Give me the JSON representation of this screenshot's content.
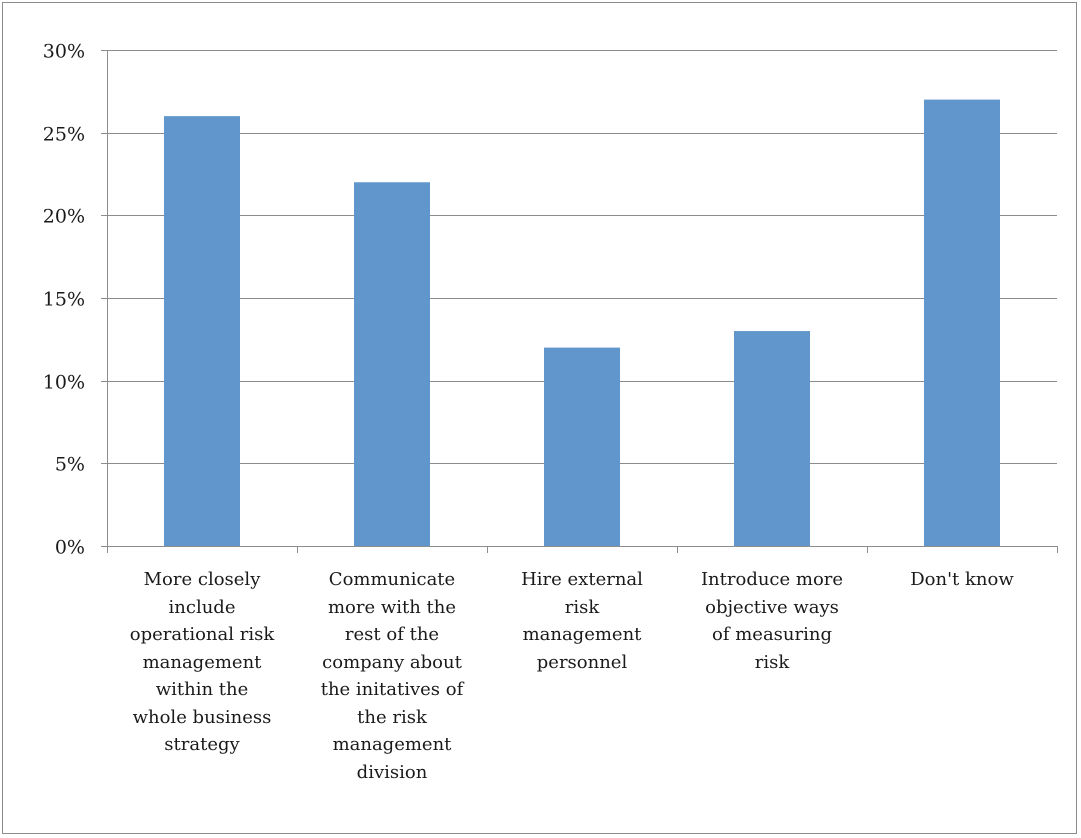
{
  "chart_data": {
    "type": "bar",
    "categories": [
      "More closely\ninclude\noperational risk\nmanagement\nwithin the\nwhole business\nstrategy",
      "Communicate\nmore with the\nrest of the\ncompany about\nthe initatives of\nthe risk\nmanagement\ndivision",
      "Hire external\nrisk\nmanagement\npersonnel",
      "Introduce more\nobjective ways\nof measuring\nrisk",
      "Don't know"
    ],
    "values": [
      26,
      22,
      12,
      13,
      27
    ],
    "ylim": [
      0,
      30
    ],
    "yticks": [
      0,
      5,
      10,
      15,
      20,
      25,
      30
    ],
    "ytick_labels": [
      "0%",
      "5%",
      "10%",
      "15%",
      "20%",
      "25%",
      "30%"
    ],
    "title": "",
    "xlabel": "",
    "ylabel": "",
    "grid": true,
    "legend": "none",
    "bar_color": "#6096cc",
    "grid_color": "#8c8c8c"
  }
}
